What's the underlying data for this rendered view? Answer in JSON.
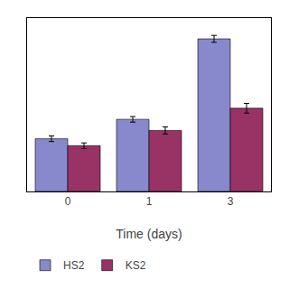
{
  "chart_data": {
    "type": "bar",
    "xlabel": "Time (days)",
    "categories": [
      "0",
      "1",
      "3"
    ],
    "series": [
      {
        "name": "HS2",
        "color": "#8888cc",
        "values": [
          0.38,
          0.52,
          1.1
        ],
        "errors": [
          0.02,
          0.02,
          0.025
        ]
      },
      {
        "name": "KS2",
        "color": "#993366",
        "values": [
          0.33,
          0.44,
          0.6
        ],
        "errors": [
          0.02,
          0.025,
          0.035
        ]
      }
    ],
    "ylim": [
      0,
      1.25
    ],
    "grid": false,
    "tick_labels": "x",
    "legend": "bottom left"
  }
}
